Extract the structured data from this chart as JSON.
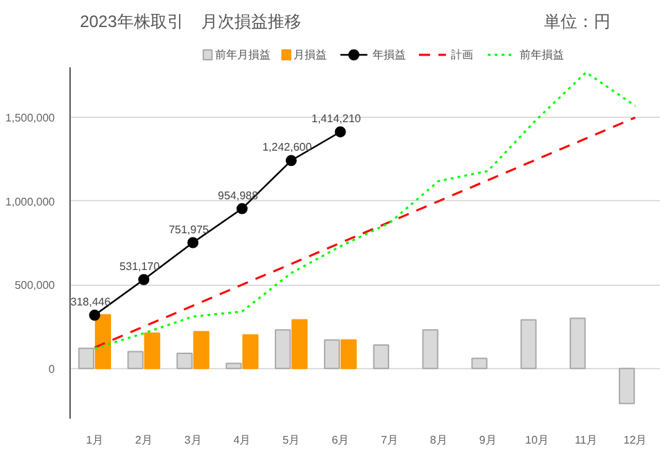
{
  "chart_data": {
    "type": "bar",
    "title": "2023年株取引",
    "subtitle": "月次損益推移",
    "annotations": [
      "単位：円"
    ],
    "categories": [
      "1月",
      "2月",
      "3月",
      "4月",
      "5月",
      "6月",
      "7月",
      "8月",
      "9月",
      "10月",
      "11月",
      "12月"
    ],
    "series": [
      {
        "name": "前年月損益",
        "color": "#d9d9d9",
        "values": [
          120000,
          100000,
          90000,
          30000,
          230000,
          170000,
          140000,
          230000,
          60000,
          290000,
          300000,
          -210000
        ]
      },
      {
        "name": "月損益",
        "color": "#ff9900",
        "values": [
          320000,
          210000,
          220000,
          200000,
          290000,
          170000,
          null,
          null,
          null,
          null,
          null,
          null
        ]
      },
      {
        "name": "年損益",
        "type": "line",
        "color": "#000000",
        "marker": "circle",
        "line_style": "solid",
        "values": [
          318446,
          531170,
          751975,
          954988,
          1242600,
          1414210,
          null,
          null,
          null,
          null,
          null,
          null
        ],
        "value_labels": [
          "318,446",
          "531,170",
          "751,975",
          "954,988",
          "1,242,600",
          "1,414,210",
          null,
          null,
          null,
          null,
          null,
          null
        ]
      },
      {
        "name": "計画",
        "type": "line",
        "color": "#ff0000",
        "line_style": "dashed",
        "values": [
          125000,
          250000,
          375000,
          500000,
          625000,
          750000,
          875000,
          1000000,
          1125000,
          1250000,
          1375000,
          1500000
        ]
      },
      {
        "name": "前年損益",
        "type": "line",
        "color": "#00ff00",
        "line_style": "dotted",
        "values": [
          120000,
          210000,
          310000,
          340000,
          570000,
          730000,
          870000,
          1120000,
          1180000,
          1490000,
          1770000,
          1570000
        ]
      }
    ],
    "ylim": [
      -300000,
      1800000
    ],
    "yticks": [
      0,
      {
        "value": 500000,
        "label": "500,000"
      },
      {
        "value": 1000000,
        "label": "1,000,000"
      },
      {
        "value": 1500000,
        "label": "1,500,000"
      }
    ],
    "grid": "y",
    "legend": "top"
  }
}
